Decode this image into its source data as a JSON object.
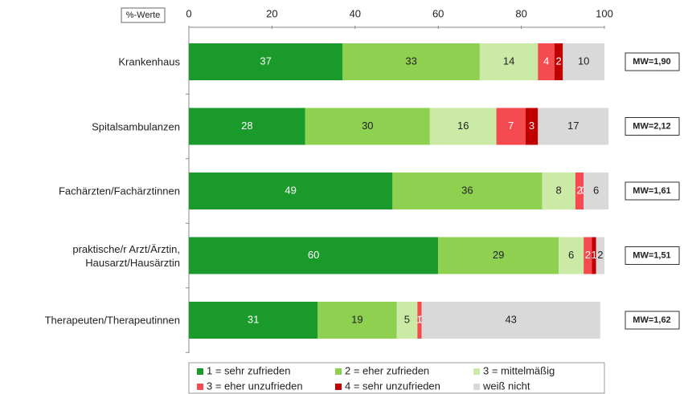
{
  "chart_data": {
    "type": "stacked_bar_horizontal",
    "unit_label": "%-Werte",
    "categories": [
      "Krankenhaus",
      "Spitalsambulanzen",
      "Fachärzten/Fachärztinnen",
      "praktische/r Arzt/Ärztin, Hausarzt/Hausärztin",
      "Therapeuten/Therapeutinnen"
    ],
    "series": [
      {
        "name": "1 = sehr zufrieden",
        "color": "#1a9a2a",
        "values": [
          37,
          28,
          49,
          60,
          31
        ]
      },
      {
        "name": "2 = eher zufrieden",
        "color": "#8ed150",
        "values": [
          33,
          30,
          36,
          29,
          19
        ]
      },
      {
        "name": "3 = mittelmäßig",
        "color": "#cbeaa6",
        "values": [
          14,
          16,
          8,
          6,
          5
        ]
      },
      {
        "name": "3 = eher unzufrieden",
        "color": "#f54a4f",
        "values": [
          4,
          7,
          2,
          2,
          1
        ]
      },
      {
        "name": "4 = sehr unzufrieden",
        "color": "#c00000",
        "values": [
          2,
          3,
          0,
          1,
          0
        ]
      },
      {
        "name": "weiß nicht",
        "color": "#d9d9d9",
        "values": [
          10,
          17,
          6,
          2,
          43
        ]
      }
    ],
    "annotations": [
      "MW=1,90",
      "MW=2,12",
      "MW=1,61",
      "MW=1,51",
      "MW=1,62"
    ],
    "xlim": [
      0,
      100
    ],
    "xticks": [
      0,
      20,
      40,
      60,
      80,
      100
    ],
    "grid": false,
    "legend": "bottom"
  }
}
